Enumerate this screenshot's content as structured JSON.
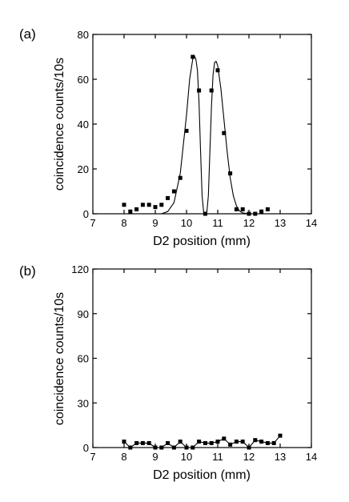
{
  "chart_data": [
    {
      "type": "scatter",
      "title": "(a)",
      "xlabel": "D2 position (mm)",
      "ylabel": "coincidence counts/10s",
      "xlim": [
        7,
        14
      ],
      "ylim": [
        0,
        80
      ],
      "xticks": [
        7,
        8,
        9,
        10,
        11,
        12,
        13,
        14
      ],
      "yticks": [
        0,
        20,
        40,
        60,
        80
      ],
      "grid": false,
      "series": [
        {
          "kind": "markers",
          "marker": "square",
          "points": [
            [
              8.0,
              4
            ],
            [
              8.2,
              1
            ],
            [
              8.4,
              2
            ],
            [
              8.6,
              4
            ],
            [
              8.8,
              4
            ],
            [
              9.0,
              3
            ],
            [
              9.2,
              4
            ],
            [
              9.4,
              7
            ],
            [
              9.6,
              10
            ],
            [
              9.8,
              16
            ],
            [
              10.0,
              37
            ],
            [
              10.2,
              70
            ],
            [
              10.4,
              55
            ],
            [
              10.6,
              0
            ],
            [
              10.8,
              55
            ],
            [
              11.0,
              64
            ],
            [
              11.2,
              36
            ],
            [
              11.4,
              18
            ],
            [
              11.6,
              2
            ],
            [
              11.8,
              2
            ],
            [
              12.0,
              0
            ],
            [
              12.2,
              0
            ],
            [
              12.4,
              1
            ],
            [
              12.6,
              2
            ]
          ]
        },
        {
          "kind": "line",
          "points": [
            [
              7.0,
              0
            ],
            [
              9.2,
              0
            ],
            [
              9.4,
              1
            ],
            [
              9.6,
              5
            ],
            [
              9.8,
              18
            ],
            [
              10.0,
              44
            ],
            [
              10.1,
              60
            ],
            [
              10.2,
              69
            ],
            [
              10.25,
              70.5
            ],
            [
              10.3,
              69
            ],
            [
              10.35,
              64
            ],
            [
              10.4,
              50
            ],
            [
              10.45,
              28
            ],
            [
              10.5,
              8
            ],
            [
              10.55,
              0.5
            ],
            [
              10.6,
              0
            ],
            [
              10.65,
              0.5
            ],
            [
              10.7,
              8
            ],
            [
              10.75,
              28
            ],
            [
              10.8,
              48
            ],
            [
              10.85,
              62
            ],
            [
              10.9,
              67.5
            ],
            [
              10.95,
              68
            ],
            [
              11.0,
              66
            ],
            [
              11.1,
              56
            ],
            [
              11.2,
              42
            ],
            [
              11.3,
              28
            ],
            [
              11.4,
              16
            ],
            [
              11.5,
              8
            ],
            [
              11.6,
              3.5
            ],
            [
              11.7,
              1.2
            ],
            [
              11.8,
              0.4
            ],
            [
              12.0,
              0
            ],
            [
              14.0,
              0
            ]
          ]
        }
      ]
    },
    {
      "type": "line",
      "title": "(b)",
      "xlabel": "D2 position (mm)",
      "ylabel": "coincidence counts/10s",
      "xlim": [
        7,
        14
      ],
      "ylim": [
        0,
        120
      ],
      "xticks": [
        7,
        8,
        9,
        10,
        11,
        12,
        13,
        14
      ],
      "yticks": [
        0,
        30,
        60,
        90,
        120
      ],
      "grid": false,
      "series": [
        {
          "kind": "line-markers",
          "marker": "square",
          "points": [
            [
              8.0,
              4
            ],
            [
              8.2,
              0
            ],
            [
              8.4,
              3
            ],
            [
              8.6,
              3
            ],
            [
              8.8,
              3
            ],
            [
              9.0,
              0
            ],
            [
              9.2,
              0
            ],
            [
              9.4,
              3
            ],
            [
              9.6,
              0
            ],
            [
              9.8,
              4
            ],
            [
              10.0,
              0
            ],
            [
              10.2,
              0
            ],
            [
              10.4,
              4
            ],
            [
              10.6,
              3
            ],
            [
              10.8,
              3
            ],
            [
              11.0,
              4
            ],
            [
              11.2,
              6
            ],
            [
              11.4,
              2
            ],
            [
              11.6,
              4
            ],
            [
              11.8,
              4
            ],
            [
              12.0,
              0
            ],
            [
              12.2,
              5
            ],
            [
              12.4,
              4
            ],
            [
              12.6,
              3
            ],
            [
              12.8,
              3
            ],
            [
              13.0,
              8
            ]
          ]
        }
      ]
    }
  ]
}
